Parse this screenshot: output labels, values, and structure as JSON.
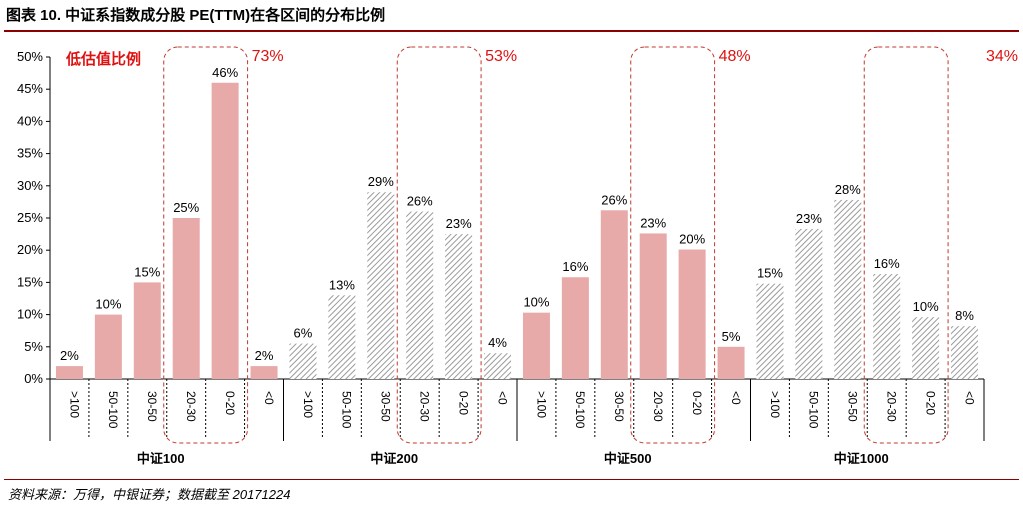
{
  "title": "图表 10. 中证系指数成分股 PE(TTM)在各区间的分布比例",
  "source": "资料来源：万得，中银证券；数据截至 20171224",
  "colors": {
    "highlight_bar": "#e8a9a9",
    "other_bar_hatch": "#9a9a9a",
    "box_border": "#c0392b",
    "annotation_text": "#e01010",
    "title_rule": "#8b0000"
  },
  "chart_data": {
    "type": "bar",
    "ylabel": "",
    "ylim": [
      0,
      50
    ],
    "yticks": [
      "0%",
      "5%",
      "10%",
      "15%",
      "20%",
      "25%",
      "30%",
      "35%",
      "40%",
      "45%",
      "50%"
    ],
    "categories": [
      ">100",
      "50-100",
      "30-50",
      "20-30",
      "0-20",
      "<0"
    ],
    "legend_note": "低估值比例",
    "groups": [
      {
        "name": "中证100",
        "values": [
          2,
          10,
          15,
          25,
          46,
          2
        ],
        "labels": [
          "2%",
          "10%",
          "15%",
          "25%",
          "46%",
          "2%"
        ],
        "highlight_style": "solid",
        "low_valuation_ratio": "73%"
      },
      {
        "name": "中证200",
        "values": [
          5.5,
          13,
          29,
          26,
          22.5,
          4
        ],
        "labels": [
          "6%",
          "13%",
          "29%",
          "26%",
          "23%",
          "4%"
        ],
        "highlight_style": "hatched",
        "low_valuation_ratio": "53%"
      },
      {
        "name": "中证500",
        "values": [
          10.3,
          15.8,
          26.2,
          22.6,
          20.1,
          5
        ],
        "labels": [
          "10%",
          "16%",
          "26%",
          "23%",
          "20%",
          "5%"
        ],
        "highlight_style": "solid",
        "low_valuation_ratio": "48%"
      },
      {
        "name": "中证1000",
        "values": [
          14.8,
          23.3,
          27.8,
          16.3,
          9.6,
          8.2
        ],
        "labels": [
          "15%",
          "23%",
          "28%",
          "16%",
          "10%",
          "8%"
        ],
        "highlight_style": "hatched",
        "low_valuation_ratio": "34%"
      }
    ]
  }
}
